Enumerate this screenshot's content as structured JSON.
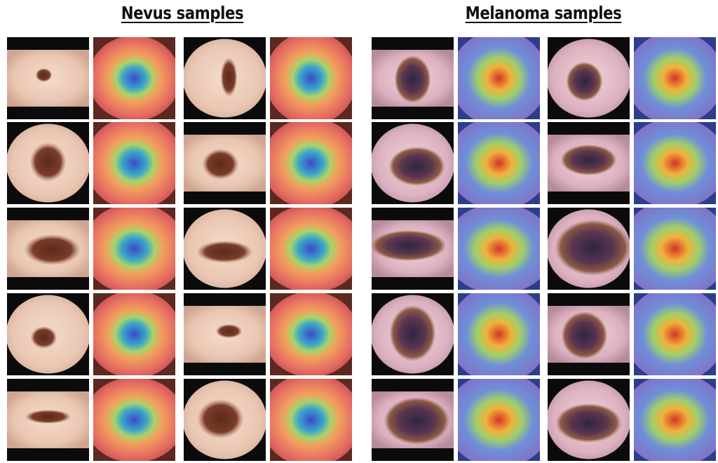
{
  "header": {
    "left_title": "Nevus samples",
    "right_title": "Melanoma samples"
  }
}
